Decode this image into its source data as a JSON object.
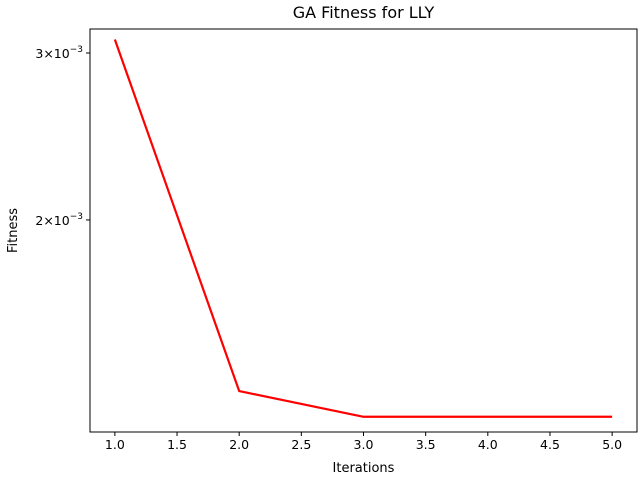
{
  "chart_data": {
    "type": "line",
    "title": "GA Fitness for LLY",
    "xlabel": "Iterations",
    "ylabel": "Fitness",
    "x": [
      1,
      2,
      3,
      4,
      5
    ],
    "series": [
      {
        "values": [
          0.0031,
          0.00132,
          0.00124,
          0.00124,
          0.00124
        ],
        "color": "#ff0000"
      }
    ],
    "xlim": [
      0.8,
      5.2
    ],
    "ylim": [
      0.001195,
      0.00318
    ],
    "yscale": "log",
    "xticks": [
      {
        "value": 1.0,
        "label": "1.0"
      },
      {
        "value": 1.5,
        "label": "1.5"
      },
      {
        "value": 2.0,
        "label": "2.0"
      },
      {
        "value": 2.5,
        "label": "2.5"
      },
      {
        "value": 3.0,
        "label": "3.0"
      },
      {
        "value": 3.5,
        "label": "3.5"
      },
      {
        "value": 4.0,
        "label": "4.0"
      },
      {
        "value": 4.5,
        "label": "4.5"
      },
      {
        "value": 5.0,
        "label": "5.0"
      }
    ],
    "yticks": [
      {
        "value": 0.002,
        "base": "2×10",
        "exp": "−3"
      },
      {
        "value": 0.003,
        "base": "3×10",
        "exp": "−3"
      }
    ],
    "grid": false,
    "legend": false
  }
}
